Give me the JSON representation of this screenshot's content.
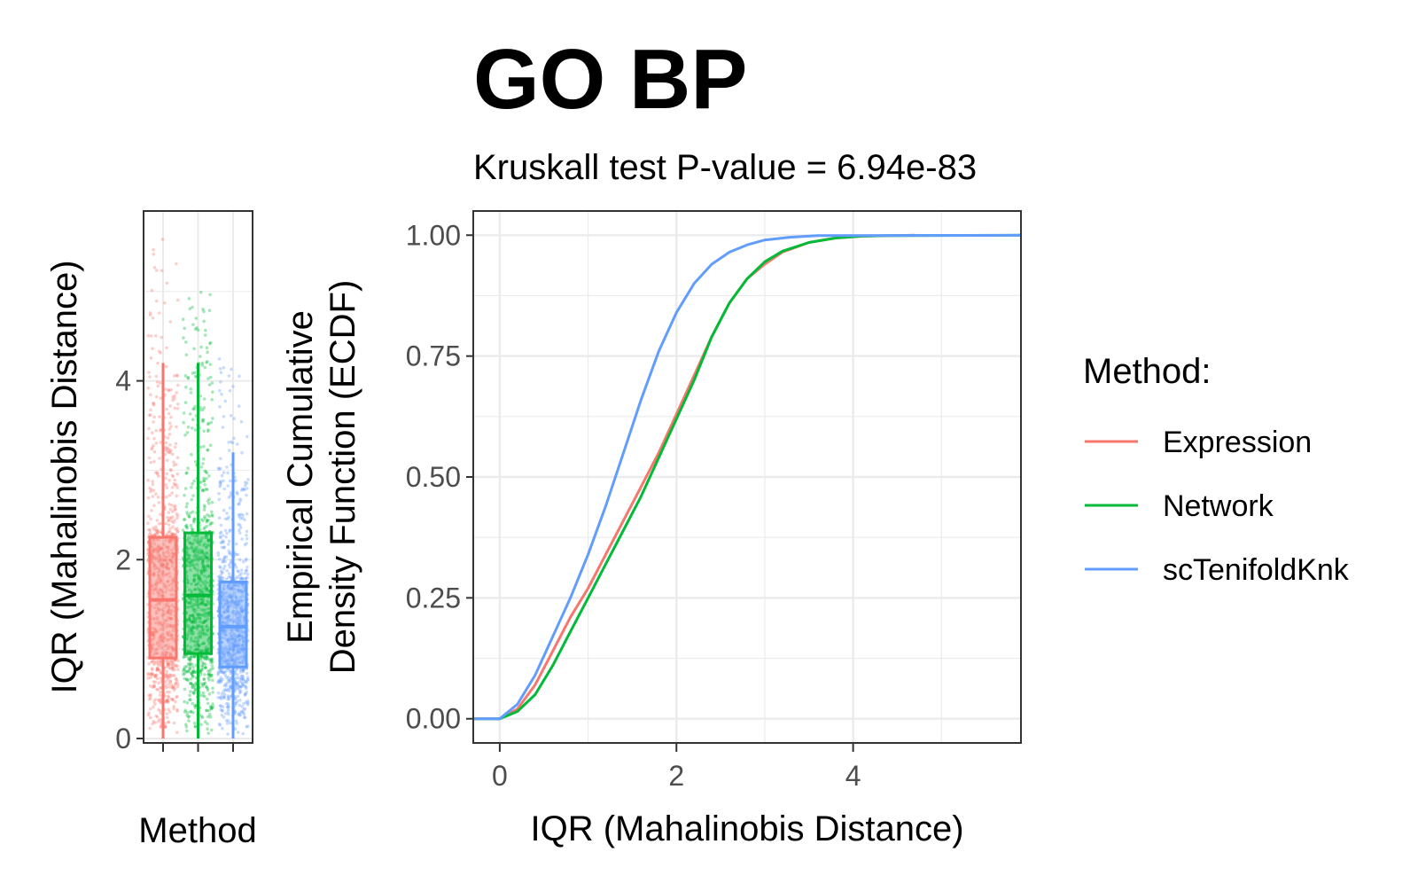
{
  "colors": {
    "expression": "#F8766D",
    "network": "#00BA38",
    "sctenifoldknk": "#619CFF",
    "grid": "#EBEBEB",
    "panel_border": "#333333",
    "tick_text": "#4D4D4D"
  },
  "chart_data": [
    {
      "type": "box",
      "xlabel": "Method",
      "ylabel": "IQR (Mahalinobis Distance)",
      "yticks": [
        0,
        2,
        4
      ],
      "ylim": [
        -0.05,
        5.9
      ],
      "grid": true,
      "jitter_points": true,
      "series": [
        {
          "name": "Expression",
          "min": 0.0,
          "q1": 0.9,
          "median": 1.55,
          "q3": 2.25,
          "whisker_high": 4.2,
          "max": 5.7
        },
        {
          "name": "Network",
          "min": 0.0,
          "q1": 0.95,
          "median": 1.6,
          "q3": 2.3,
          "whisker_high": 4.2,
          "max": 5.0
        },
        {
          "name": "scTenifoldKnk",
          "min": 0.0,
          "q1": 0.8,
          "median": 1.25,
          "q3": 1.75,
          "whisker_high": 3.2,
          "max": 4.3
        }
      ]
    },
    {
      "type": "line",
      "title": "GO BP",
      "subtitle": "Kruskall test P-value = 6.94e-83",
      "xlabel": "IQR (Mahalinobis Distance)",
      "ylabel_lines": [
        "Empirical Cumulative",
        "Density Function (ECDF)"
      ],
      "xticks": [
        0,
        2,
        4
      ],
      "yticks": [
        "0.00",
        "0.25",
        "0.50",
        "0.75",
        "1.00"
      ],
      "xlim": [
        -0.3,
        5.9
      ],
      "ylim": [
        -0.05,
        1.05
      ],
      "grid": true,
      "legend": {
        "title": "Method:",
        "position": "right",
        "items": [
          "Expression",
          "Network",
          "scTenifoldKnk"
        ]
      },
      "series": [
        {
          "name": "Expression",
          "x": [
            -0.3,
            0,
            0.2,
            0.4,
            0.6,
            0.8,
            1.0,
            1.2,
            1.4,
            1.6,
            1.8,
            2.0,
            2.2,
            2.4,
            2.6,
            2.8,
            3.0,
            3.2,
            3.5,
            3.8,
            4.1,
            4.4,
            4.7
          ],
          "y": [
            0,
            0,
            0.02,
            0.07,
            0.14,
            0.21,
            0.27,
            0.34,
            0.41,
            0.48,
            0.55,
            0.63,
            0.71,
            0.79,
            0.86,
            0.91,
            0.94,
            0.965,
            0.985,
            0.994,
            0.998,
            0.999,
            1.0
          ]
        },
        {
          "name": "Network",
          "x": [
            -0.3,
            0,
            0.2,
            0.4,
            0.6,
            0.8,
            1.0,
            1.2,
            1.4,
            1.6,
            1.8,
            2.0,
            2.2,
            2.4,
            2.6,
            2.8,
            3.0,
            3.2,
            3.5,
            3.8,
            4.1,
            4.4,
            5.9
          ],
          "y": [
            0,
            0,
            0.015,
            0.05,
            0.11,
            0.18,
            0.25,
            0.32,
            0.39,
            0.46,
            0.54,
            0.62,
            0.7,
            0.79,
            0.86,
            0.91,
            0.945,
            0.967,
            0.985,
            0.994,
            0.998,
            0.999,
            1.0
          ]
        },
        {
          "name": "scTenifoldKnk",
          "x": [
            -0.3,
            0,
            0.2,
            0.4,
            0.6,
            0.8,
            1.0,
            1.2,
            1.4,
            1.6,
            1.8,
            2.0,
            2.2,
            2.4,
            2.6,
            2.8,
            3.0,
            3.3,
            3.6,
            5.9
          ],
          "y": [
            0,
            0,
            0.03,
            0.09,
            0.17,
            0.25,
            0.34,
            0.44,
            0.55,
            0.66,
            0.76,
            0.84,
            0.9,
            0.94,
            0.965,
            0.98,
            0.99,
            0.996,
            0.999,
            1.0
          ]
        }
      ]
    }
  ]
}
